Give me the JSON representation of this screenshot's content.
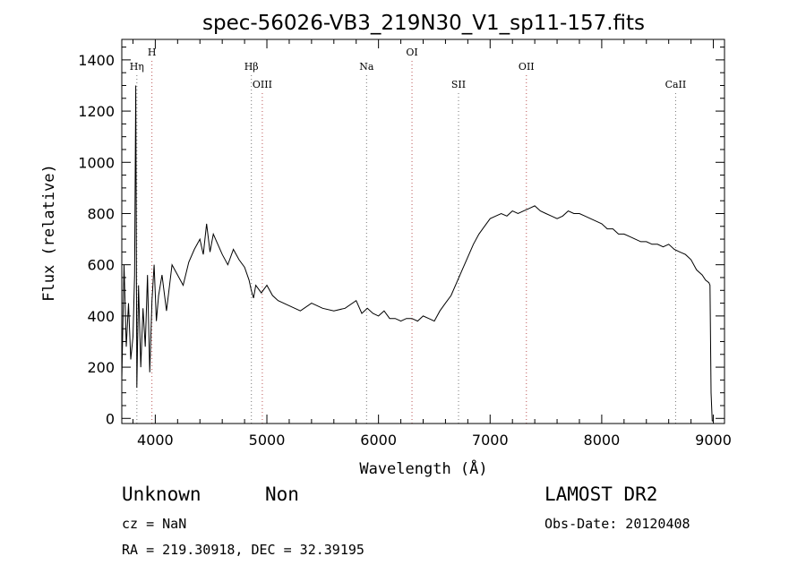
{
  "chart_data": {
    "type": "line",
    "title": "spec-56026-VB3_219N30_V1_sp11-157.fits",
    "xlabel": "Wavelength (Å)",
    "ylabel": "Flux (relative)",
    "xlim": [
      3700,
      9100
    ],
    "ylim": [
      -20,
      1480
    ],
    "xticks": [
      4000,
      5000,
      6000,
      7000,
      8000,
      9000
    ],
    "yticks": [
      0,
      200,
      400,
      600,
      800,
      1000,
      1200,
      1400
    ],
    "grid": false,
    "series": [
      {
        "x": [
          3700,
          3720,
          3740,
          3760,
          3780,
          3800,
          3815,
          3825,
          3835,
          3850,
          3870,
          3890,
          3910,
          3930,
          3950,
          3970,
          3990,
          4010,
          4030,
          4060,
          4100,
          4150,
          4200,
          4250,
          4300,
          4350,
          4400,
          4430,
          4460,
          4490,
          4520,
          4560,
          4600,
          4650,
          4700,
          4750,
          4800,
          4840,
          4860,
          4880,
          4900,
          4950,
          5000,
          5050,
          5100,
          5200,
          5300,
          5400,
          5500,
          5600,
          5700,
          5800,
          5850,
          5900,
          5950,
          6000,
          6050,
          6100,
          6150,
          6200,
          6250,
          6300,
          6350,
          6400,
          6450,
          6500,
          6550,
          6600,
          6650,
          6700,
          6750,
          6800,
          6850,
          6900,
          6950,
          7000,
          7050,
          7100,
          7150,
          7200,
          7250,
          7300,
          7350,
          7400,
          7450,
          7500,
          7550,
          7600,
          7650,
          7700,
          7750,
          7800,
          7850,
          7900,
          7950,
          8000,
          8050,
          8100,
          8150,
          8200,
          8250,
          8300,
          8350,
          8400,
          8450,
          8500,
          8550,
          8600,
          8650,
          8700,
          8750,
          8800,
          8850,
          8900,
          8930,
          8960,
          8970,
          8980,
          8990,
          9000
        ],
        "values": [
          150,
          600,
          280,
          450,
          230,
          320,
          560,
          1300,
          120,
          520,
          200,
          430,
          280,
          560,
          180,
          460,
          600,
          380,
          480,
          560,
          420,
          600,
          560,
          520,
          610,
          660,
          700,
          640,
          760,
          650,
          720,
          680,
          640,
          600,
          660,
          620,
          590,
          540,
          500,
          470,
          520,
          490,
          520,
          480,
          460,
          440,
          420,
          450,
          430,
          420,
          430,
          460,
          410,
          430,
          410,
          400,
          420,
          390,
          390,
          380,
          390,
          390,
          380,
          400,
          390,
          380,
          420,
          450,
          480,
          530,
          580,
          630,
          680,
          720,
          750,
          780,
          790,
          800,
          790,
          810,
          800,
          810,
          820,
          830,
          810,
          800,
          790,
          780,
          790,
          810,
          800,
          800,
          790,
          780,
          770,
          760,
          740,
          740,
          720,
          720,
          710,
          700,
          690,
          690,
          680,
          680,
          670,
          680,
          660,
          650,
          640,
          620,
          580,
          560,
          540,
          530,
          520,
          100,
          -10,
          -10
        ]
      }
    ],
    "line_markers": [
      {
        "label": "Hη",
        "x": 3835
      },
      {
        "label": "H",
        "x": 3970
      },
      {
        "label": "Hβ",
        "x": 4861
      },
      {
        "label": "OIII",
        "x": 4959
      },
      {
        "label": "Na",
        "x": 5893
      },
      {
        "label": "OI",
        "x": 6300
      },
      {
        "label": "SII",
        "x": 6717
      },
      {
        "label": "OII",
        "x": 7325
      },
      {
        "label": "CaII",
        "x": 8662
      }
    ]
  },
  "info": {
    "class": "Unknown",
    "subclass": "Non",
    "survey": "LAMOST DR2",
    "cz": "cz = NaN",
    "obs_date": "Obs-Date: 20120408",
    "coords": "RA = 219.30918, DEC =  32.39195"
  }
}
